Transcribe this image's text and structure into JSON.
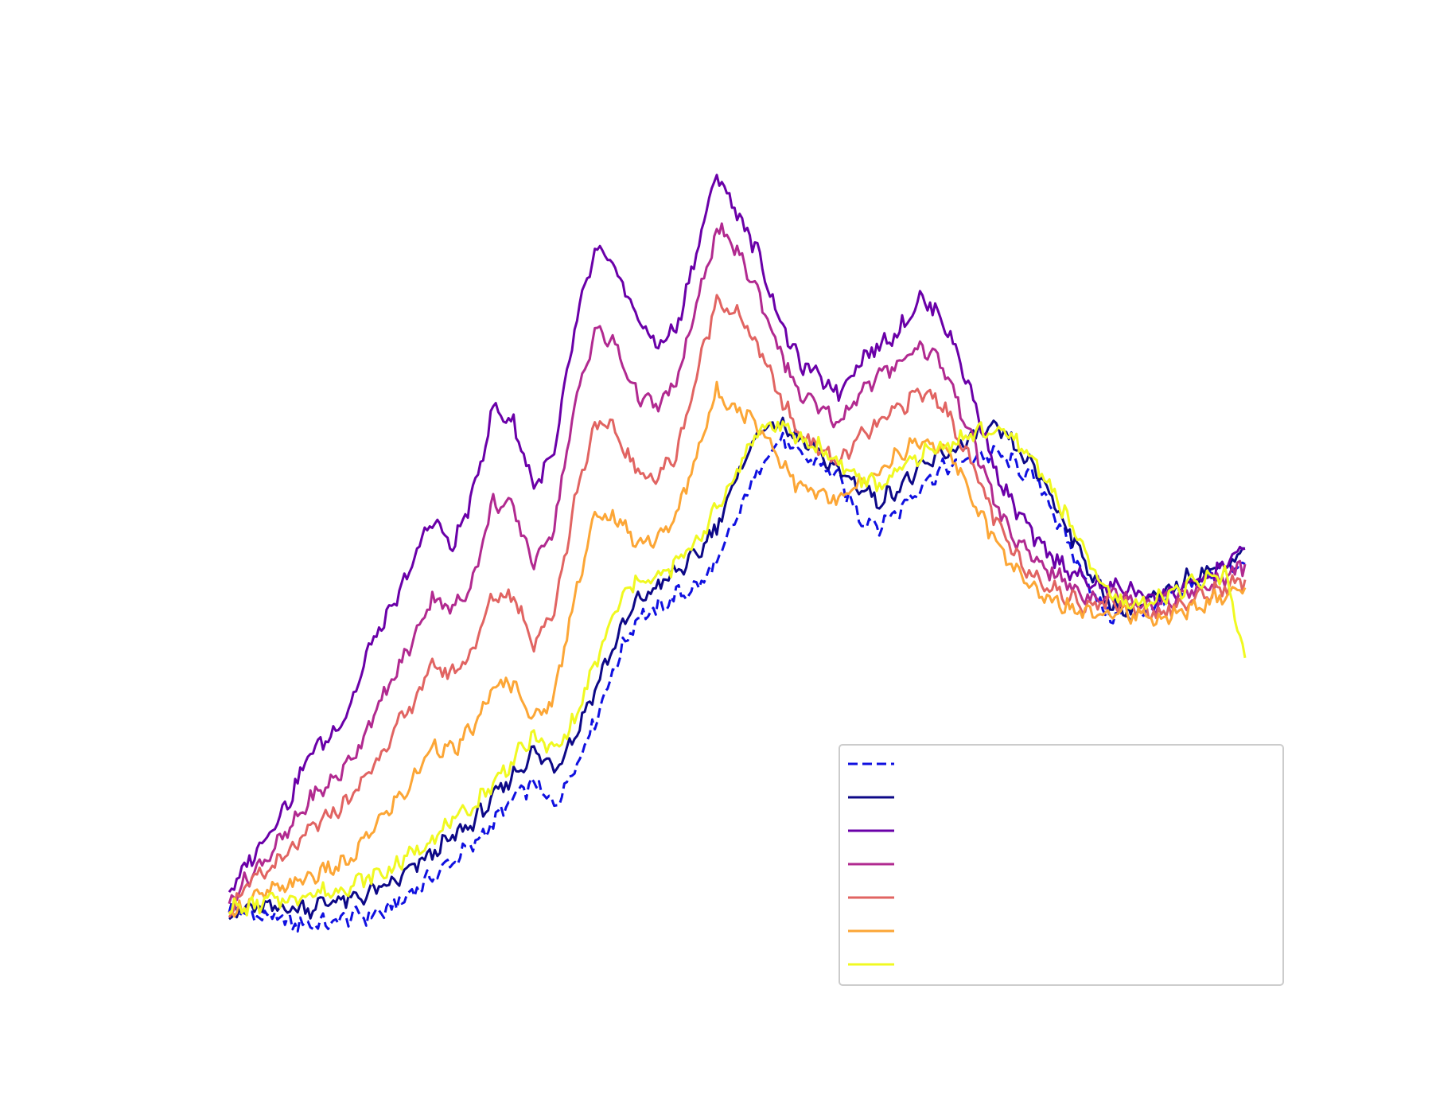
{
  "chart_data": {
    "type": "line",
    "title": "",
    "xlabel": "",
    "ylabel": "",
    "xlim": [
      0,
      100
    ],
    "ylim": [
      0,
      100
    ],
    "grid": false,
    "axes_visible": false,
    "legend_position": "lower-right",
    "x": [
      0,
      2,
      4,
      6,
      8,
      10,
      12,
      14,
      16,
      18,
      20,
      22,
      24,
      26,
      28,
      30,
      32,
      34,
      36,
      38,
      40,
      42,
      44,
      46,
      48,
      50,
      52,
      54,
      56,
      58,
      60,
      62,
      64,
      66,
      68,
      70,
      72,
      74,
      76,
      78,
      80,
      82,
      84,
      86,
      88,
      90,
      92,
      94,
      96,
      98,
      100
    ],
    "series": [
      {
        "name": "",
        "color": "#1010e0",
        "dash": "dashed",
        "values": [
          6,
          5,
          5,
          4,
          4,
          4,
          5,
          5,
          6,
          8,
          10,
          12,
          14,
          17,
          20,
          22,
          19,
          24,
          30,
          37,
          43,
          44,
          46,
          47,
          50,
          56,
          62,
          66,
          64,
          63,
          61,
          56,
          55,
          57,
          60,
          62,
          63,
          64,
          64,
          62,
          60,
          54,
          49,
          44,
          43,
          44,
          45,
          47,
          48,
          49,
          50
        ]
      },
      {
        "name": "",
        "color": "#0d0887",
        "dash": "solid",
        "values": [
          5,
          6,
          6,
          6,
          6,
          7,
          7,
          8,
          9,
          11,
          13,
          15,
          17,
          20,
          23,
          26,
          24,
          28,
          34,
          40,
          45,
          47,
          49,
          51,
          55,
          61,
          67,
          68,
          66,
          64,
          62,
          60,
          58,
          60,
          62,
          64,
          65,
          67,
          67,
          64,
          61,
          56,
          51,
          46,
          44,
          45,
          46,
          48,
          49,
          50,
          52
        ]
      },
      {
        "name": "",
        "color": "#6a00a8",
        "dash": "solid",
        "values": [
          8,
          12,
          16,
          20,
          26,
          28,
          32,
          40,
          44,
          50,
          56,
          52,
          59,
          70,
          68,
          60,
          64,
          80,
          90,
          88,
          82,
          78,
          80,
          90,
          100,
          95,
          90,
          82,
          76,
          74,
          72,
          76,
          78,
          80,
          84,
          82,
          76,
          68,
          60,
          56,
          52,
          50,
          48,
          47,
          47,
          46,
          46,
          47,
          48,
          50,
          52
        ]
      },
      {
        "name": "",
        "color": "#b12a90",
        "dash": "solid",
        "values": [
          7,
          10,
          13,
          16,
          20,
          22,
          25,
          30,
          35,
          40,
          46,
          44,
          48,
          58,
          57,
          50,
          55,
          70,
          80,
          78,
          72,
          70,
          73,
          83,
          93,
          90,
          85,
          78,
          72,
          70,
          68,
          72,
          74,
          76,
          78,
          76,
          70,
          63,
          56,
          52,
          50,
          48,
          46,
          46,
          46,
          45,
          45,
          46,
          47,
          48,
          50
        ]
      },
      {
        "name": "",
        "color": "#e16462",
        "dash": "solid",
        "values": [
          6,
          9,
          11,
          13,
          16,
          18,
          20,
          24,
          28,
          32,
          37,
          36,
          39,
          46,
          46,
          40,
          44,
          58,
          68,
          67,
          62,
          61,
          64,
          74,
          84,
          82,
          78,
          72,
          67,
          65,
          63,
          66,
          68,
          70,
          72,
          71,
          66,
          60,
          54,
          50,
          48,
          46,
          45,
          45,
          45,
          44,
          44,
          45,
          46,
          47,
          48
        ]
      },
      {
        "name": "",
        "color": "#fca636",
        "dash": "solid",
        "values": [
          5,
          7,
          8,
          9,
          10,
          11,
          12,
          16,
          19,
          22,
          27,
          26,
          29,
          34,
          35,
          30,
          33,
          46,
          56,
          56,
          53,
          53,
          56,
          64,
          72,
          70,
          68,
          64,
          60,
          59,
          58,
          60,
          62,
          64,
          66,
          65,
          62,
          56,
          52,
          48,
          46,
          45,
          44,
          44,
          44,
          43,
          43,
          44,
          45,
          46,
          47
        ]
      },
      {
        "name": "",
        "color": "#f0f921",
        "dash": "solid",
        "values": [
          6,
          6,
          7,
          7,
          8,
          8,
          9,
          10,
          11,
          13,
          15,
          17,
          19,
          22,
          25,
          28,
          26,
          30,
          37,
          44,
          48,
          48,
          50,
          53,
          57,
          62,
          67,
          68,
          66,
          65,
          63,
          61,
          60,
          62,
          64,
          65,
          66,
          67,
          67,
          65,
          62,
          57,
          52,
          47,
          45,
          45,
          46,
          47,
          48,
          49,
          38
        ]
      }
    ]
  }
}
